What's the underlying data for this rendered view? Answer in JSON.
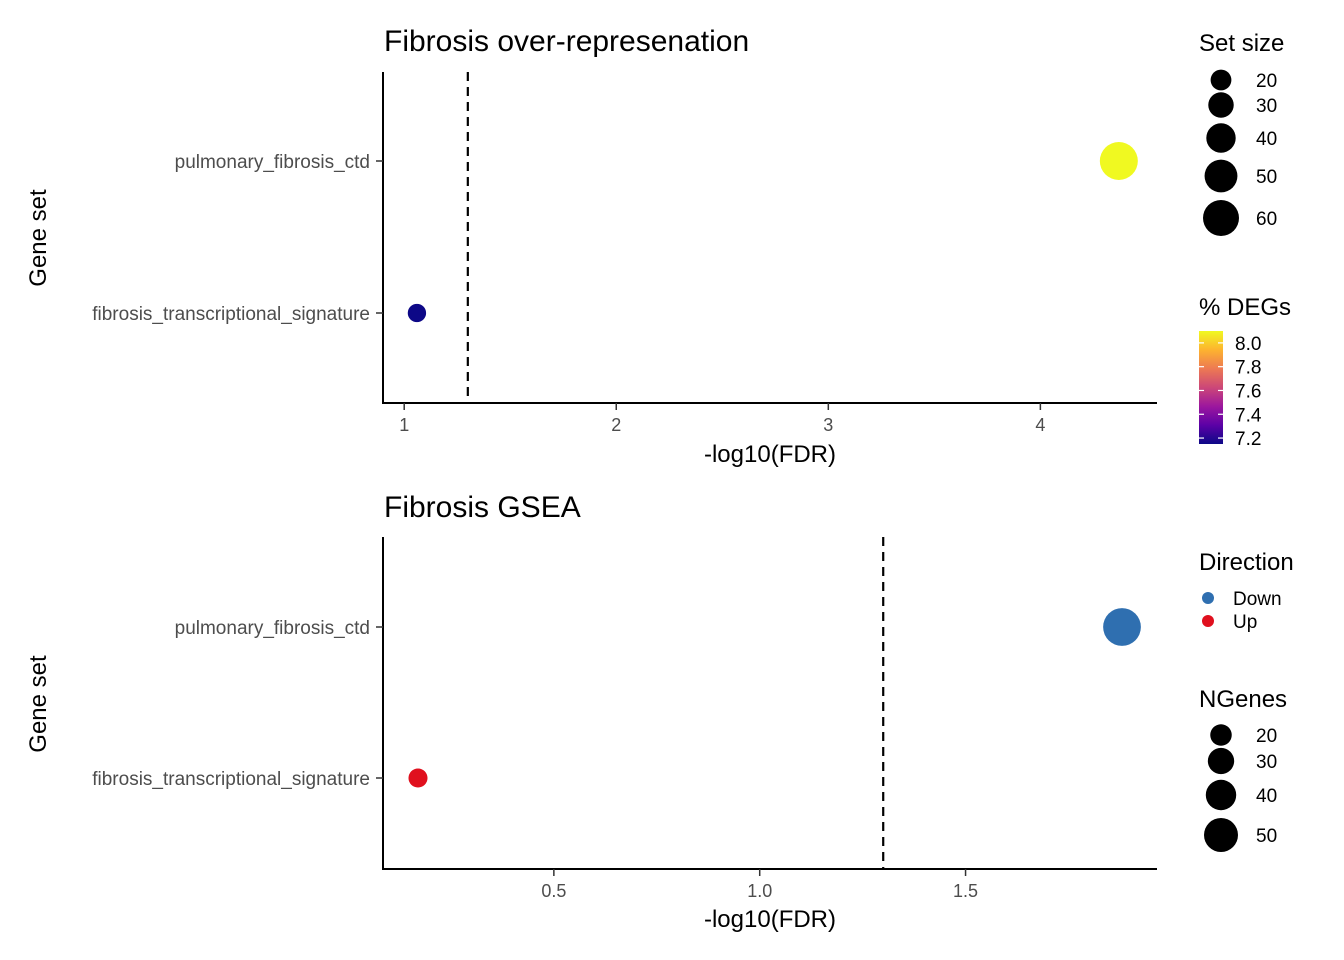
{
  "chart_data": [
    {
      "type": "scatter",
      "title": "Fibrosis over-represenation",
      "xlabel": "-log10(FDR)",
      "ylabel": "Gene set",
      "xlim": [
        0.9,
        4.55
      ],
      "xticks": [
        1,
        2,
        3,
        4
      ],
      "xtick_labels": [
        "1",
        "2",
        "3",
        "4"
      ],
      "categories": [
        "pulmonary_fibrosis_ctd",
        "fibrosis_transcriptional_signature"
      ],
      "threshold": 1.3,
      "points": [
        {
          "category": "pulmonary_fibrosis_ctd",
          "x": 4.37,
          "size": 60,
          "pct_degs": 8.1,
          "color": "#f0f921"
        },
        {
          "category": "fibrosis_transcriptional_signature",
          "x": 1.06,
          "size": 14,
          "pct_degs": 7.15,
          "color": "#0d0887"
        }
      ],
      "legend_size": {
        "title": "Set size",
        "entries": [
          {
            "label": "20",
            "size": 20
          },
          {
            "label": "30",
            "size": 30
          },
          {
            "label": "40",
            "size": 40
          },
          {
            "label": "50",
            "size": 50
          },
          {
            "label": "60",
            "size": 60
          }
        ]
      },
      "legend_color": {
        "title": "% DEGs",
        "range": [
          7.15,
          8.1
        ],
        "ticks": [
          {
            "label": "8.0",
            "value": 8.0
          },
          {
            "label": "7.8",
            "value": 7.8
          },
          {
            "label": "7.6",
            "value": 7.6
          },
          {
            "label": "7.4",
            "value": 7.4
          },
          {
            "label": "7.2",
            "value": 7.2
          }
        ],
        "gradient": [
          "#0d0887",
          "#5c01a6",
          "#9c179e",
          "#cc4778",
          "#ed7953",
          "#fdb32f",
          "#f0f921"
        ]
      }
    },
    {
      "type": "scatter",
      "title": "Fibrosis GSEA",
      "xlabel": "-log10(FDR)",
      "ylabel": "Gene set",
      "xlim": [
        0.085,
        1.965
      ],
      "xticks": [
        0.5,
        1.0,
        1.5
      ],
      "xtick_labels": [
        "0.5",
        "1.0",
        "1.5"
      ],
      "categories": [
        "pulmonary_fibrosis_ctd",
        "fibrosis_transcriptional_signature"
      ],
      "threshold": 1.3,
      "points": [
        {
          "category": "pulmonary_fibrosis_ctd",
          "x": 1.88,
          "size": 55,
          "direction": "Down",
          "color": "#2f6fb0"
        },
        {
          "category": "fibrosis_transcriptional_signature",
          "x": 0.17,
          "size": 14,
          "direction": "Up",
          "color": "#e0101e"
        }
      ],
      "legend_direction": {
        "title": "Direction",
        "entries": [
          {
            "label": "Down",
            "color": "#2f6fb0"
          },
          {
            "label": "Up",
            "color": "#e0101e"
          }
        ]
      },
      "legend_size": {
        "title": "NGenes",
        "entries": [
          {
            "label": "20",
            "size": 20
          },
          {
            "label": "30",
            "size": 30
          },
          {
            "label": "40",
            "size": 40
          },
          {
            "label": "50",
            "size": 50
          }
        ]
      }
    }
  ]
}
